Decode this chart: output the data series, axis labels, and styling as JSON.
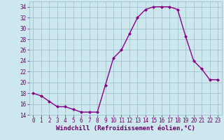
{
  "x": [
    0,
    1,
    2,
    3,
    4,
    5,
    6,
    7,
    8,
    9,
    10,
    11,
    12,
    13,
    14,
    15,
    16,
    17,
    18,
    19,
    20,
    21,
    22,
    23
  ],
  "y": [
    18,
    17.5,
    16.5,
    15.5,
    15.5,
    15,
    14.5,
    14.5,
    14.5,
    19.5,
    24.5,
    26,
    29,
    32,
    33.5,
    34,
    34,
    34,
    33.5,
    28.5,
    24,
    22.5,
    20.5,
    20.5
  ],
  "line_color": "#880088",
  "marker": "D",
  "marker_size": 2.0,
  "bg_color": "#cce8ee",
  "grid_color": "#99bbcc",
  "xlabel": "Windchill (Refroidissement éolien,°C)",
  "xlabel_color": "#660066",
  "tick_color": "#660066",
  "ylim": [
    14,
    35
  ],
  "yticks": [
    14,
    16,
    18,
    20,
    22,
    24,
    26,
    28,
    30,
    32,
    34
  ],
  "xlim": [
    -0.5,
    23.5
  ],
  "xticks": [
    0,
    1,
    2,
    3,
    4,
    5,
    6,
    7,
    8,
    9,
    10,
    11,
    12,
    13,
    14,
    15,
    16,
    17,
    18,
    19,
    20,
    21,
    22,
    23
  ],
  "tick_fontsize": 5.5,
  "xlabel_fontsize": 6.5,
  "lw": 1.0
}
